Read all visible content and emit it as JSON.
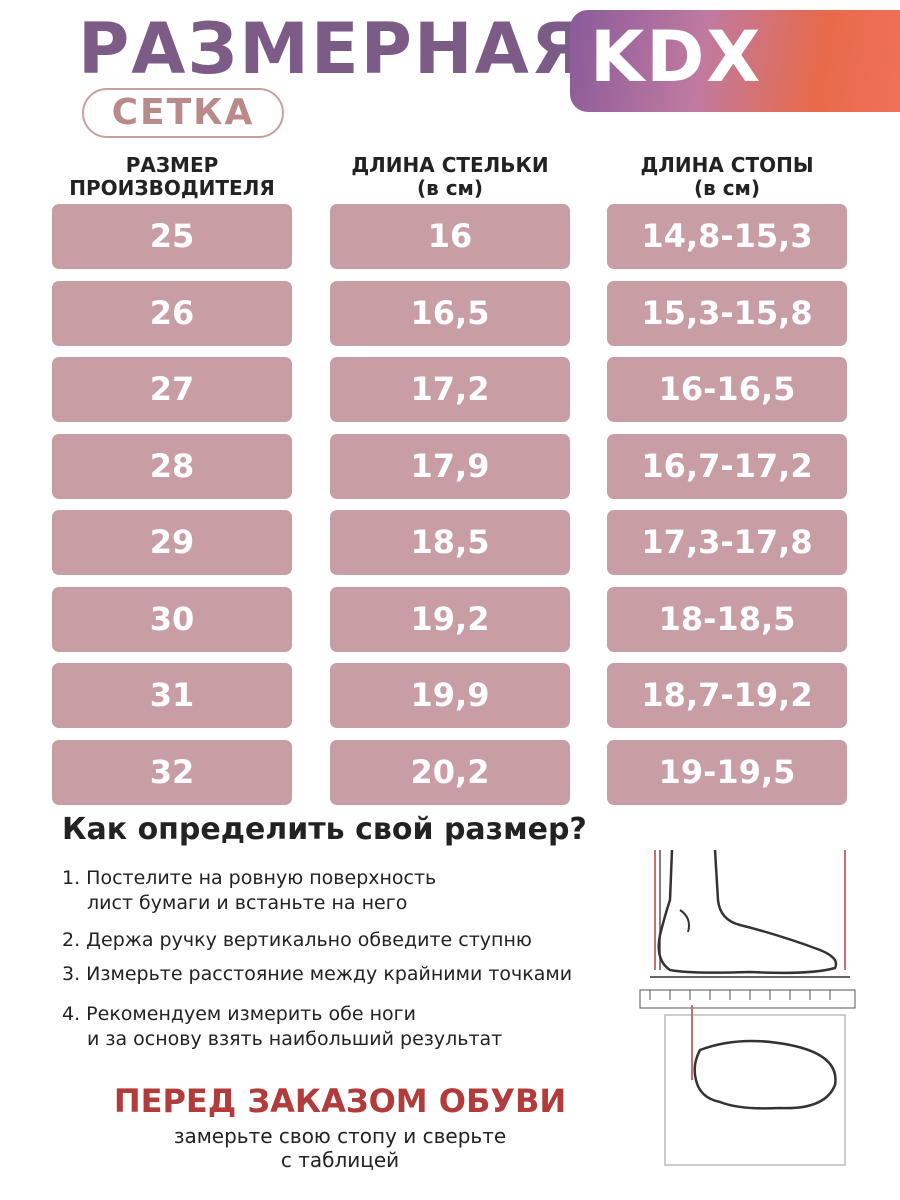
{
  "header": {
    "title": "РАЗМЕРНАЯ",
    "subtitle": "СЕТКА",
    "brand": "KDX"
  },
  "table": {
    "headers": [
      [
        "РАЗМЕР",
        "ПРОИЗВОДИТЕЛЯ"
      ],
      [
        "ДЛИНА СТЕЛЬКИ",
        "(в см)"
      ],
      [
        "ДЛИНА СТОПЫ",
        "(в см)"
      ]
    ],
    "rows": [
      [
        "25",
        "16",
        "14,8-15,3"
      ],
      [
        "26",
        "16,5",
        "15,3-15,8"
      ],
      [
        "27",
        "17,2",
        "16-16,5"
      ],
      [
        "28",
        "17,9",
        "16,7-17,2"
      ],
      [
        "29",
        "18,5",
        "17,3-17,8"
      ],
      [
        "30",
        "19,2",
        "18-18,5"
      ],
      [
        "31",
        "19,9",
        "18,7-19,2"
      ],
      [
        "32",
        "20,2",
        "19-19,5"
      ]
    ]
  },
  "instructions": {
    "title": "Как определить свой размер?",
    "steps": [
      [
        "1. Постелите на ровную поверхность",
        "лист бумаги и встаньте на него"
      ],
      [
        "2. Держа ручку вертикально обведите ступню"
      ],
      [
        "3. Измерьте расстояние между крайними точками"
      ],
      [
        "4. Рекомендуем измерить обе ноги",
        "и за основу взять наибольший результат"
      ]
    ]
  },
  "footer": {
    "warning": "ПЕРЕД ЗАКАЗОМ ОБУВИ",
    "note": [
      "замерьте свою стопу и сверьте",
      "с таблицей"
    ]
  }
}
